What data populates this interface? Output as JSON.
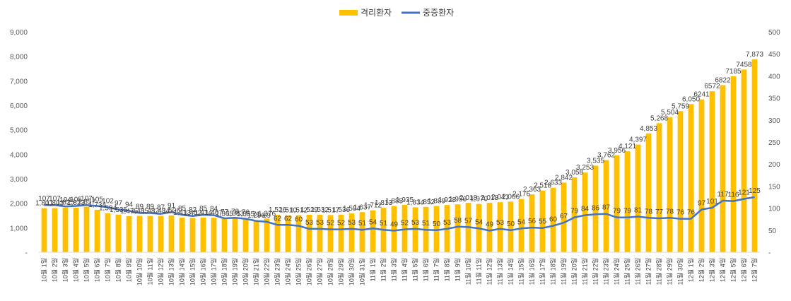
{
  "chart_data": {
    "type": "bar+line",
    "title": "",
    "legend_position": "top-center",
    "series": [
      {
        "name": "격리환자",
        "kind": "bar",
        "axis": "left",
        "color": "#FFC000",
        "values": [
          1801,
          1803,
          1825,
          1823,
          1857,
          1734,
          1594,
          1535,
          1475,
          1485,
          1482,
          1484,
          1506,
          1413,
          1402,
          1414,
          1407,
          1365,
          1383,
          1355,
          1296,
          1376,
          1526,
          1510,
          1512,
          1529,
          1532,
          1517,
          1536,
          1584,
          1637,
          1712,
          1813,
          1885,
          1935,
          1834,
          1852,
          1889,
          1928,
          1956,
          2018,
          1970,
          2018,
          2041,
          2066,
          2176,
          2363,
          2518,
          2633,
          2842,
          3058,
          3253,
          3535,
          3762,
          3956,
          4121,
          4397,
          4853,
          5268,
          5504,
          5759,
          6050,
          6241,
          6572,
          6822,
          7185,
          7458,
          7873
        ],
        "labels": [
          "1,801",
          "1,803",
          "1,825",
          "1,823",
          "1,857",
          "1,734",
          "1,594",
          "1,535",
          "1,475",
          "1,485",
          "1,482",
          "1,484",
          "1,506",
          "1,413",
          "1,402",
          "1,414",
          "1,407",
          "1,365",
          "1,383",
          "1,355",
          "1,296",
          "1,376",
          "1,526",
          "1,510",
          "1,512",
          "1,529",
          "1,532",
          "1,517",
          "1,536",
          "1,584",
          "1,637",
          "1,712",
          "1,813",
          "1,885",
          "1,935",
          "1,834",
          "1,852",
          "1,889",
          "1,928",
          "1,956",
          "2,018",
          "1,970",
          "2,018",
          "2,041",
          "2,066",
          "2,176",
          "2,363",
          "2,518",
          "2,633",
          "2,842",
          "3,058",
          "3,253",
          "3,535",
          "3,762",
          "3,956",
          "4,121",
          "4,397",
          "4,853",
          "5,268",
          "5,504",
          "5,759",
          "6,050",
          "6241",
          "6572",
          "6822",
          "7185",
          "7458",
          "7,873"
        ]
      },
      {
        "name": "중증환자",
        "kind": "line",
        "axis": "right",
        "color": "#4472C4",
        "values": [
          107,
          107,
          104,
          105,
          107,
          105,
          102,
          97,
          94,
          89,
          89,
          87,
          91,
          85,
          82,
          85,
          84,
          77,
          78,
          76,
          71,
          69,
          62,
          62,
          60,
          53,
          53,
          52,
          52,
          53,
          51,
          54,
          51,
          49,
          52,
          53,
          51,
          50,
          53,
          58,
          57,
          54,
          49,
          53,
          50,
          54,
          56,
          55,
          60,
          67,
          79,
          84,
          86,
          87,
          79,
          79,
          81,
          78,
          77,
          78,
          76,
          76,
          97,
          101,
          117,
          116,
          121,
          125
        ],
        "labels": [
          "107",
          "107",
          "104",
          "105",
          "107",
          "105",
          "102",
          "97",
          "94",
          "89",
          "89",
          "87",
          "91",
          "85",
          "82",
          "85",
          "84",
          "77",
          "78",
          "76",
          "71",
          "69",
          "62",
          "62",
          "60",
          "53",
          "53",
          "52",
          "52",
          "53",
          "51",
          "54",
          "51",
          "49",
          "52",
          "53",
          "51",
          "50",
          "53",
          "58",
          "57",
          "54",
          "49",
          "53",
          "50",
          "54",
          "56",
          "55",
          "60",
          "67",
          "79",
          "84",
          "86",
          "87",
          "79",
          "79",
          "81",
          "78",
          "77",
          "78",
          "76",
          "76",
          "97",
          "101",
          "117",
          "116",
          "121",
          "125"
        ]
      }
    ],
    "categories": [
      "10월 1일",
      "10월 2일",
      "10월 3일",
      "10월 4일",
      "10월 5일",
      "10월 6일",
      "10월 7일",
      "10월 8일",
      "10월 9일",
      "10월 10일",
      "10월 11일",
      "10월 12일",
      "10월 13일",
      "10월 14일",
      "10월 15일",
      "10월 16일",
      "10월 17일",
      "10월 18일",
      "10월 19일",
      "10월 20일",
      "10월 21일",
      "10월 22일",
      "10월 23일",
      "10월 24일",
      "10월 25일",
      "10월 26일",
      "10월 27일",
      "10월 28일",
      "10월 29일",
      "10월 30일",
      "10월 31일",
      "11월 1일",
      "11월 2일",
      "11월 3일",
      "11월 4일",
      "11월 5일",
      "11월 6일",
      "11월 7일",
      "11월 8일",
      "11월 9일",
      "11월 10일",
      "11월 11일",
      "11월 12일",
      "11월 13일",
      "11월 14일",
      "11월 15일",
      "11월 16일",
      "11월 17일",
      "11월 18일",
      "11월 19일",
      "11월 20일",
      "11월 21일",
      "11월 22일",
      "11월 23일",
      "11월 24일",
      "11월 25일",
      "11월 26일",
      "11월 27일",
      "11월 28일",
      "11월 29일",
      "11월 30일",
      "12월 1일",
      "12월 2일",
      "12월 3일",
      "12월 4일",
      "12월 5일",
      "12월 6일",
      "12월 7일"
    ],
    "category_labels": [
      "10월 1일",
      "10월 2일",
      "10월 3일",
      "10월 4일",
      "10월 5일",
      "10월 6일",
      "10월 7일",
      "10월 8일",
      "10월 9일",
      "10월 10일",
      "10월 11일",
      "10월 12일",
      "10월 13일",
      "10월 14일",
      "10월 15일",
      "10월 16일",
      "10월 17일",
      "10월 18일",
      "10월 19일",
      "10월 20일",
      "10월 21일",
      "10월 22일",
      "10월 23일",
      "10월 24일",
      "10월 25일",
      "10월 26일",
      "10월 27일",
      "10월 28일",
      "10월 29일",
      "10월 30일",
      "10월 31일",
      "11월 1일",
      "11월 2일",
      "11월 3일",
      "11월 4일",
      "11월 5일",
      "11월 6일",
      "11월 7일",
      "11월 8일",
      "11월 9일",
      "11월 10일",
      "11월 11일",
      "11월 12일",
      "11월 13일",
      "11월 14일",
      "11월 15일",
      "11월 16일",
      "11월 17일",
      "11월 18일",
      "11월 19일",
      "11월 20일",
      "11월 21일",
      "11월 22일",
      "11월 23일",
      "11월 24일",
      "11월 25일",
      "11월 26일",
      "11월 27일",
      "11월 28일",
      "11월 29일",
      "11월 30일",
      "12월 1일",
      "12월 2일",
      "12월 3일",
      "12월 4일",
      "12월 5일",
      "12월 6일",
      "12월 7일"
    ],
    "y_left": {
      "min": 0,
      "max": 9000,
      "step": 1000,
      "tick_labels": [
        "-",
        "1,000",
        "2,000",
        "3,000",
        "4,000",
        "5,000",
        "6,000",
        "7,000",
        "8,000",
        "9,000"
      ]
    },
    "y_right": {
      "min": 0,
      "max": 500,
      "step": 50,
      "tick_labels": [
        "-",
        "50",
        "100",
        "150",
        "200",
        "250",
        "300",
        "350",
        "400",
        "450",
        "500"
      ]
    },
    "grid": false
  }
}
